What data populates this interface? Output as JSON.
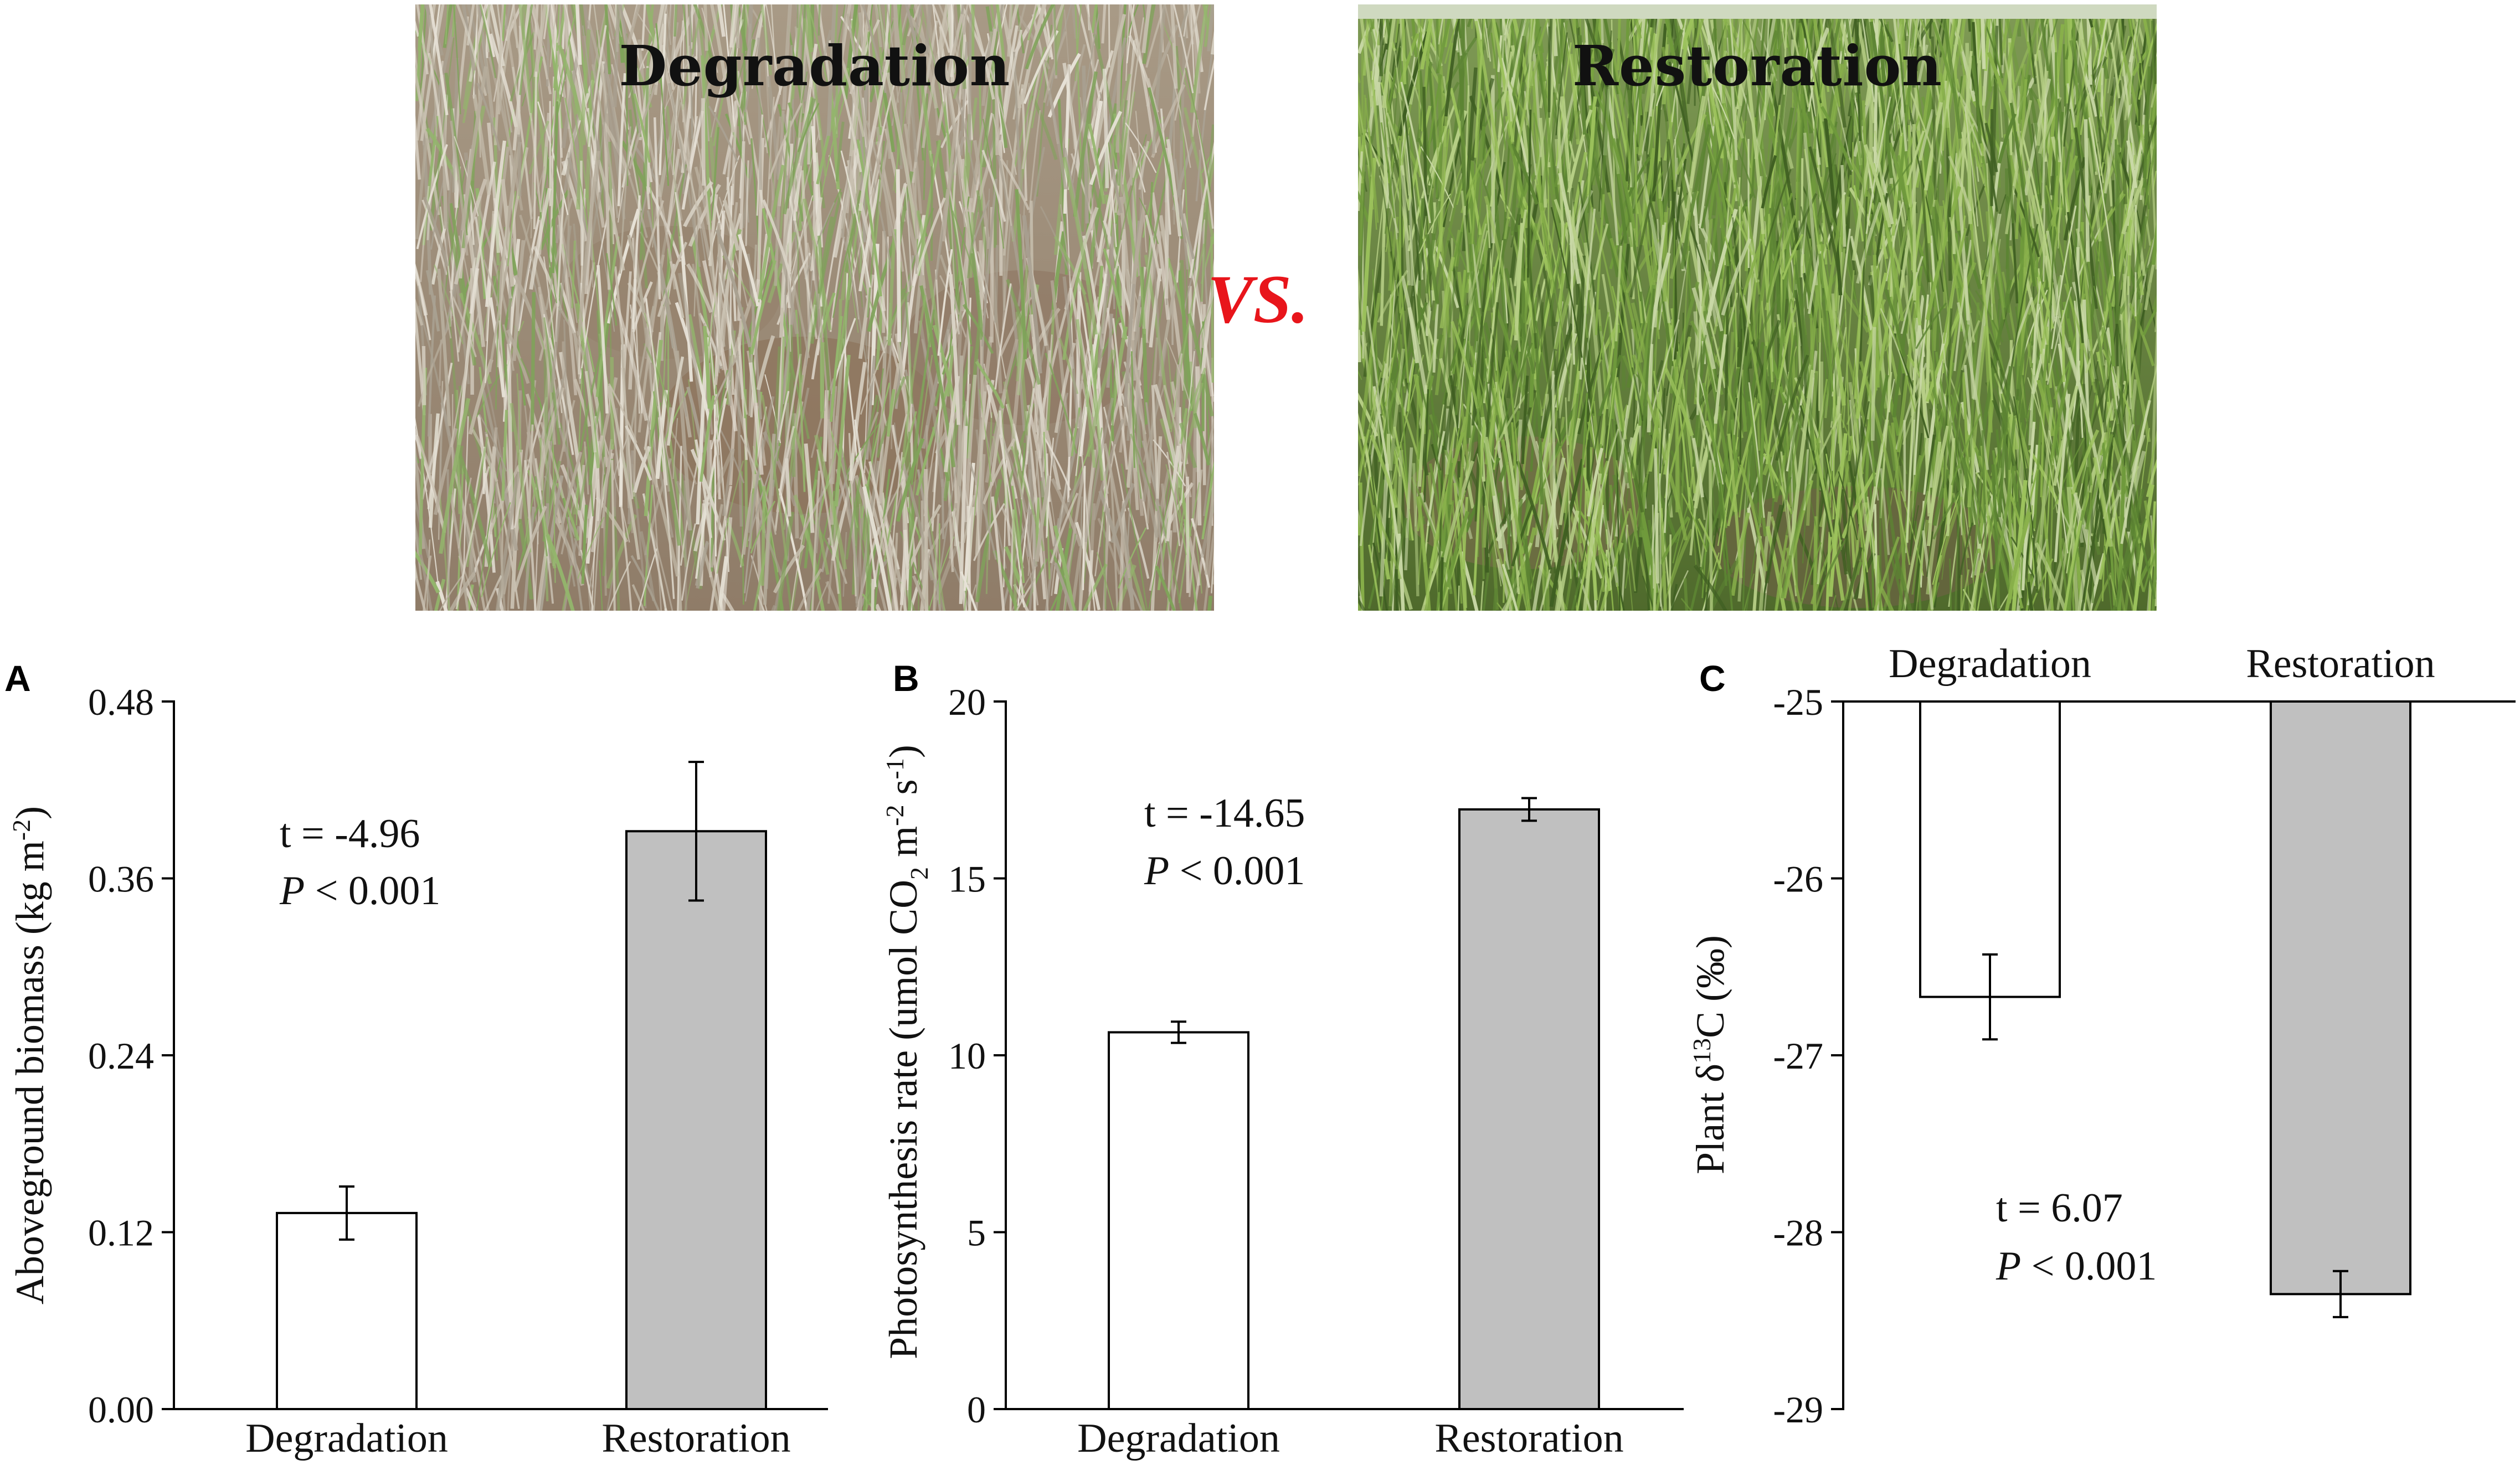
{
  "photos": {
    "left": {
      "label": "Degradation"
    },
    "right": {
      "label": "Restoration"
    },
    "versus": "VS."
  },
  "colors": {
    "degradation_bar": "#ffffff",
    "restoration_bar": "#c0c0c0",
    "versus_text": "#e8151b",
    "photo_soil": "#9c8a74",
    "photo_grass": "#6f9a3c"
  },
  "chart_data": [
    {
      "type": "bar",
      "panel": "A",
      "categories": [
        "Degradation",
        "Restoration"
      ],
      "values": [
        0.133,
        0.392
      ],
      "errors": [
        0.018,
        0.047
      ],
      "yticks": [
        "0.00",
        "0.12",
        "0.24",
        "0.36",
        "0.48"
      ],
      "ytick_values": [
        0,
        0.12,
        0.24,
        0.36,
        0.48
      ],
      "ylim": [
        0,
        0.48
      ],
      "ylabel": "Aboveground biomass (kg m",
      "ylabel_sup": "-2",
      "ylabel_tail": ")",
      "stat_t": "t = -4.96",
      "stat_p_italic": "P",
      "stat_p_rest": " < 0.001"
    },
    {
      "type": "bar",
      "panel": "B",
      "categories": [
        "Degradation",
        "Restoration"
      ],
      "values": [
        10.65,
        16.95
      ],
      "errors": [
        0.3,
        0.32
      ],
      "yticks": [
        "0",
        "5",
        "10",
        "15",
        "20"
      ],
      "ytick_values": [
        0,
        5,
        10,
        15,
        20
      ],
      "ylim": [
        0,
        20
      ],
      "ylabel": "Photosynthesis rate (umol CO",
      "ylabel_sub": "2",
      "ylabel_mid": " m",
      "ylabel_sup1": "-2",
      "ylabel_s": " s",
      "ylabel_sup2": "-1",
      "ylabel_tail": ")",
      "stat_t": "t = -14.65",
      "stat_p_italic": "P",
      "stat_p_rest": " < 0.001"
    },
    {
      "type": "bar",
      "panel": "C",
      "categories": [
        "Degradation",
        "Restoration"
      ],
      "values": [
        -26.67,
        -28.35
      ],
      "errors": [
        0.24,
        0.13
      ],
      "yticks": [
        "-25",
        "-26",
        "-27",
        "-28",
        "-29"
      ],
      "ytick_values": [
        -25,
        -26,
        -27,
        -28,
        -29
      ],
      "ylim": [
        -29,
        -25
      ],
      "ylabel": "Plant δ",
      "ylabel_sup": "13",
      "ylabel_tail": "C (‰)",
      "stat_t": "t = 6.07",
      "stat_p_italic": "P",
      "stat_p_rest": " < 0.001"
    }
  ]
}
